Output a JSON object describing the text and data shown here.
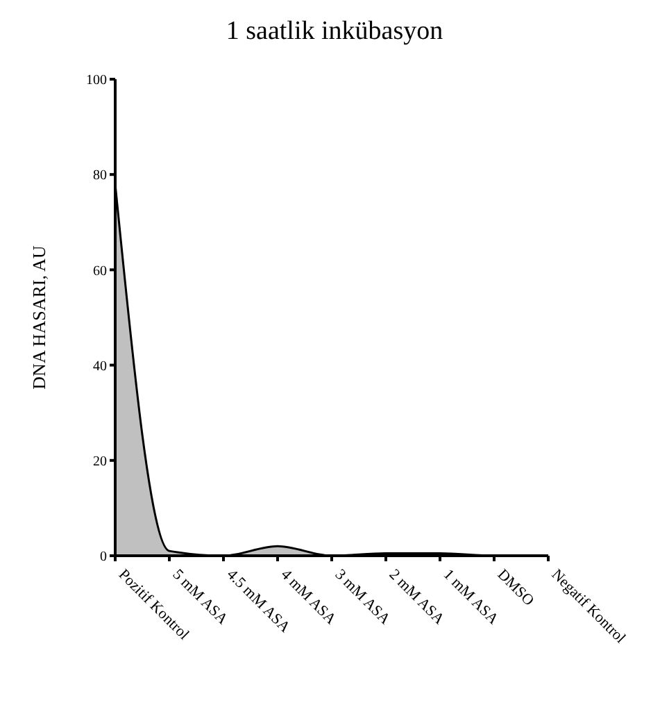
{
  "chart_data": {
    "type": "area",
    "title": "1 saatlik inkübasyon",
    "ylabel": "DNA HASARI, AU",
    "categories": [
      "Pozitif Kontrol",
      "5 mM ASA",
      "4.5 mM ASA",
      "4 mM ASA",
      "3 mM ASA",
      "2 mM ASA",
      "1 mM ASA",
      "DMSO",
      "Negatif Kontrol"
    ],
    "values": [
      78,
      1,
      0,
      2,
      0,
      0.5,
      0.5,
      0,
      0
    ],
    "color": "#c0c0c0",
    "ylim": [
      0,
      100
    ],
    "yticks": [
      0,
      20,
      40,
      60,
      80,
      100
    ],
    "grid": false
  }
}
